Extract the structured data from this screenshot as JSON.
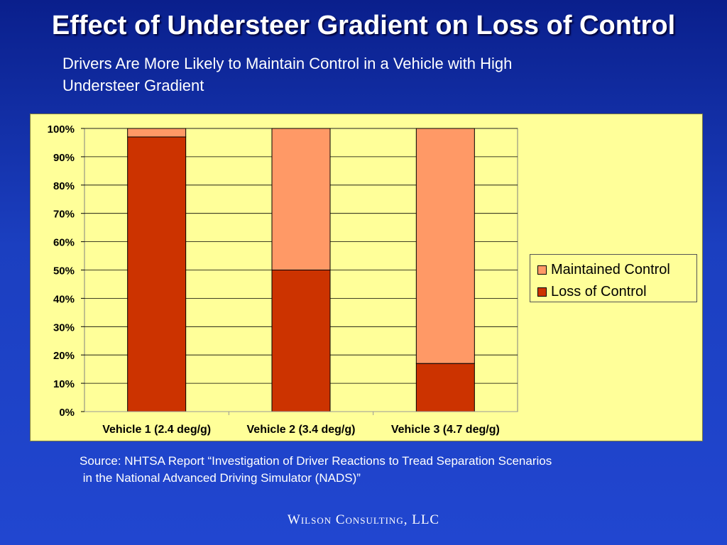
{
  "slide": {
    "title": "Effect of Understeer Gradient on Loss of Control",
    "subtitle_lines": [
      "Drivers  Are More Likely to Maintain Control in a Vehicle with High",
      "Understeer Gradient"
    ],
    "source_lines": [
      "Source: NHTSA Report “Investigation of Driver Reactions to Tread Separation Scenarios",
      " in the National Advanced Driving Simulator (NADS)”"
    ],
    "footer": "Wilson Consulting, LLC"
  },
  "colors": {
    "loss_of_control": "#cc3300",
    "maintained_control": "#ff9966",
    "plot_background": "#ffff99",
    "gridline": "#000000"
  },
  "chart_data": {
    "type": "bar",
    "stacked": true,
    "percent": true,
    "title": "",
    "xlabel": "",
    "ylabel": "",
    "categories": [
      "Vehicle 1 (2.4 deg/g)",
      "Vehicle 2 (3.4 deg/g)",
      "Vehicle 3 (4.7 deg/g)"
    ],
    "series": [
      {
        "name": "Loss of Control",
        "values": [
          97,
          50,
          17
        ],
        "color": "#cc3300"
      },
      {
        "name": "Maintained Control",
        "values": [
          3,
          50,
          83
        ],
        "color": "#ff9966"
      }
    ],
    "ylim": [
      0,
      100
    ],
    "yticks": [
      "0%",
      "10%",
      "20%",
      "30%",
      "40%",
      "50%",
      "60%",
      "70%",
      "80%",
      "90%",
      "100%"
    ],
    "grid": true,
    "legend": {
      "placement": "right",
      "entries": [
        "Maintained Control",
        "Loss of Control"
      ]
    }
  }
}
